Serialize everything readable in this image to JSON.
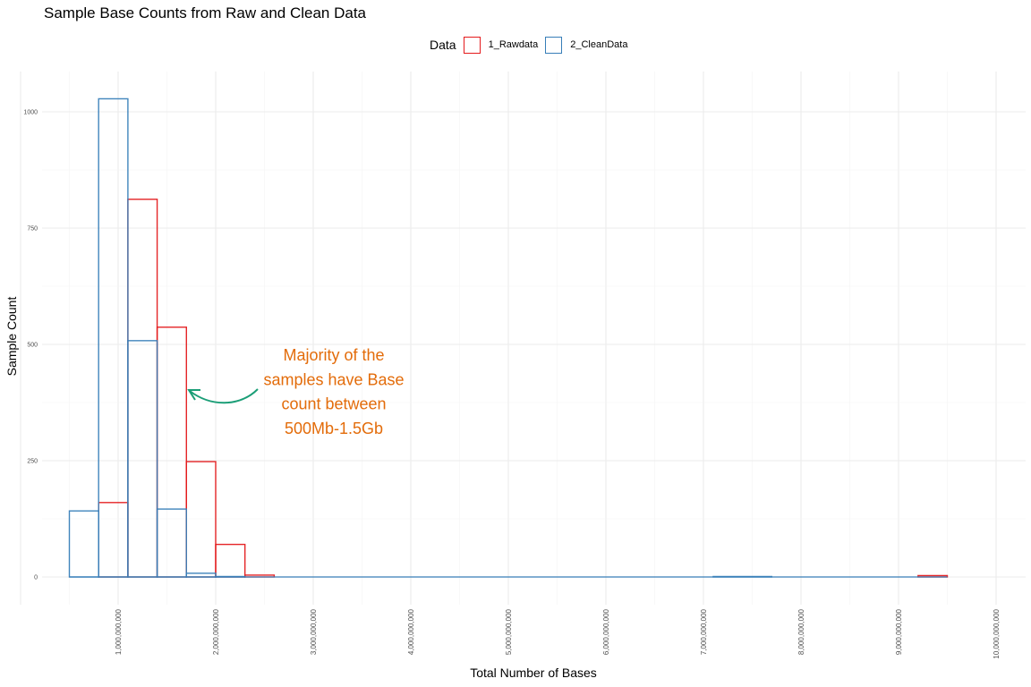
{
  "chart_data": {
    "type": "bar",
    "title": "Sample Base Counts from Raw and Clean Data",
    "xlabel": "Total Number of Bases",
    "ylabel": "Sample Count",
    "legend": {
      "title": "Data",
      "position": "top",
      "items": [
        {
          "label": "1_Rawdata",
          "color": "#e41a1c"
        },
        {
          "label": "2_CleanData",
          "color": "#377eb8"
        }
      ]
    },
    "bin_width": 300000000,
    "xlim": [
      0,
      10000000000
    ],
    "ylim": [
      0,
      1050
    ],
    "x_major_ticks": [
      1000000000,
      2000000000,
      3000000000,
      4000000000,
      5000000000,
      6000000000,
      7000000000,
      8000000000,
      9000000000,
      10000000000
    ],
    "x_tick_labels": [
      "1,000,000,000",
      "2,000,000,000",
      "3,000,000,000",
      "4,000,000,000",
      "5,000,000,000",
      "6,000,000,000",
      "7,000,000,000",
      "8,000,000,000",
      "9,000,000,000",
      "10,000,000,000"
    ],
    "y_ticks": [
      0,
      250,
      500,
      750,
      1000
    ],
    "y_tick_labels": [
      "0",
      "250",
      "500",
      "750",
      "1000"
    ],
    "grid": true,
    "series": [
      {
        "name": "1_Rawdata",
        "color": "#e41a1c",
        "bins": [
          {
            "start": 800000000,
            "end": 1100000000,
            "count": 160
          },
          {
            "start": 1100000000,
            "end": 1400000000,
            "count": 812
          },
          {
            "start": 1400000000,
            "end": 1700000000,
            "count": 537
          },
          {
            "start": 1700000000,
            "end": 2000000000,
            "count": 248
          },
          {
            "start": 2000000000,
            "end": 2300000000,
            "count": 70
          },
          {
            "start": 2300000000,
            "end": 2600000000,
            "count": 4
          },
          {
            "start": 9200000000,
            "end": 9500000000,
            "count": 3
          }
        ]
      },
      {
        "name": "2_CleanData",
        "color": "#377eb8",
        "bins": [
          {
            "start": 500000000,
            "end": 800000000,
            "count": 142
          },
          {
            "start": 800000000,
            "end": 1100000000,
            "count": 1028
          },
          {
            "start": 1100000000,
            "end": 1400000000,
            "count": 508
          },
          {
            "start": 1400000000,
            "end": 1700000000,
            "count": 146
          },
          {
            "start": 1700000000,
            "end": 2000000000,
            "count": 8
          },
          {
            "start": 2000000000,
            "end": 2300000000,
            "count": 1
          },
          {
            "start": 7100000000,
            "end": 7700000000,
            "count": 1
          }
        ],
        "axis_extent": [
          500000000,
          9500000000
        ]
      }
    ],
    "annotations": [
      {
        "text_lines": [
          "Majority of the",
          "samples have Base",
          "count between",
          "500Mb-1.5Gb"
        ],
        "color": "#e36c0a",
        "arrow_color": "#1b9e77"
      }
    ]
  }
}
